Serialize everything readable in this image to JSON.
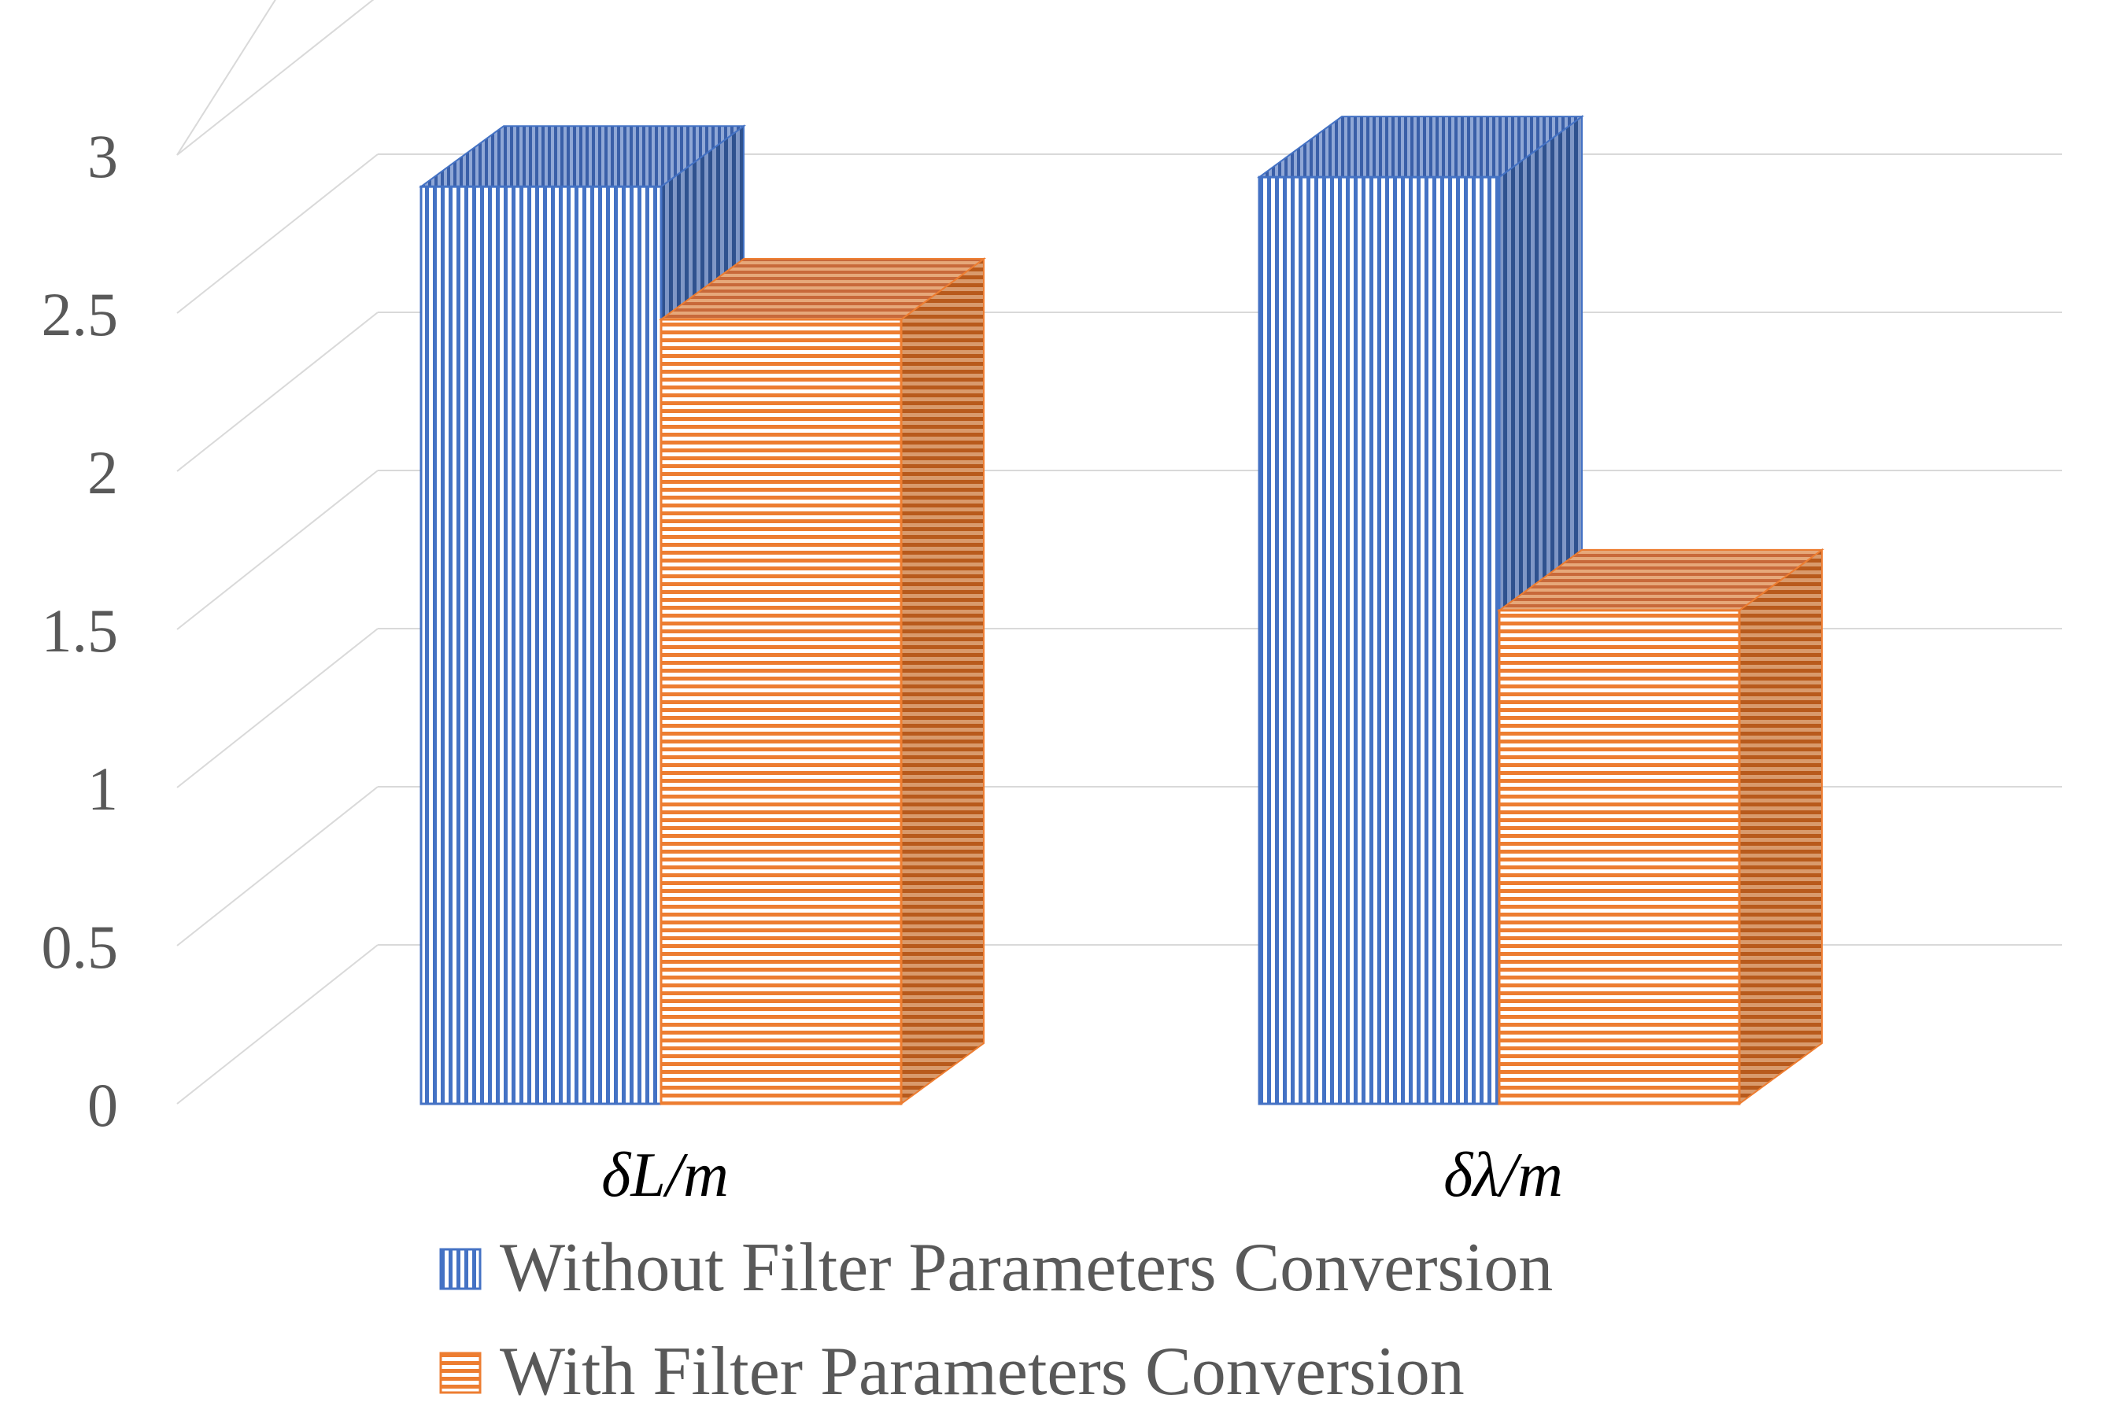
{
  "chart_data": {
    "type": "bar",
    "categories": [
      "δL/m",
      "δλ/m"
    ],
    "series": [
      {
        "name": "Without Filter Parameters Conversion",
        "values": [
          2.9,
          2.93
        ]
      },
      {
        "name": "With Filter Parameters Conversion",
        "values": [
          2.48,
          1.56
        ]
      }
    ],
    "yticks": [
      "0",
      "0.5",
      "1",
      "1.5",
      "2",
      "2.5",
      "3"
    ],
    "ylim": [
      0,
      3.5
    ],
    "title": "",
    "xlabel": "",
    "ylabel": "",
    "grid": true,
    "legend_position": "bottom",
    "colors": {
      "series0_front": "#4472c4",
      "series0_side": "#2f528f",
      "series1_front": "#ed7d31",
      "series1_side": "#c55a11",
      "grid": "#d9d9d9"
    }
  }
}
